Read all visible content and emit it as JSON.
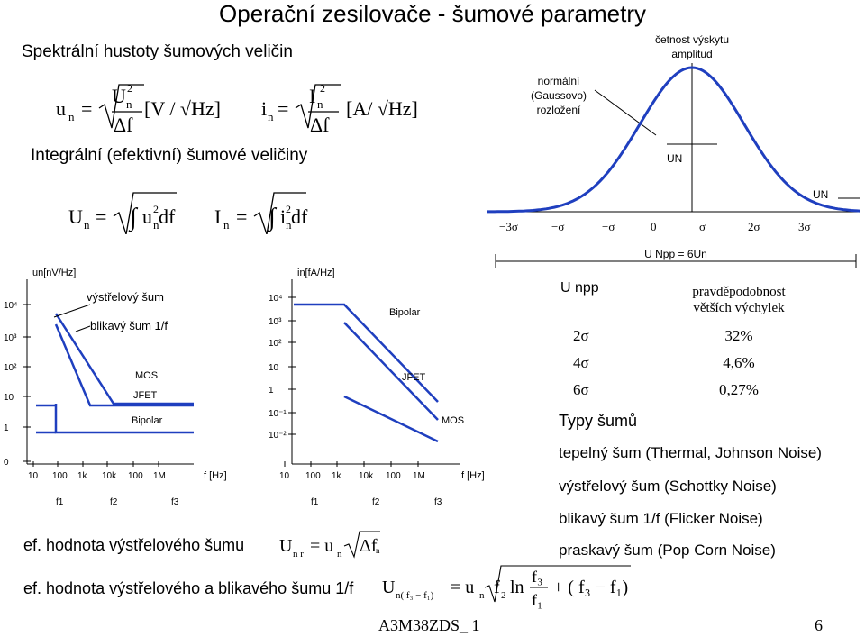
{
  "title": "Operační zesilovače - šumové parametry",
  "section_spectral": "Spektrální hustoty šumových veličin",
  "section_integral": "Integrální (efektivní) šumové veličiny",
  "formula_un_unit": "[V / √Hz]",
  "formula_in_unit": "[A/ √Hz]",
  "gauss": {
    "label_top": [
      "četnost výskytu",
      "amplitud"
    ],
    "label_normal": [
      "normální",
      "(Gaussovo)",
      "rozložení"
    ],
    "un_label": "UN",
    "un_right": "UN",
    "axis_ticks": [
      "−3σ",
      "−σ",
      "−σ",
      "0",
      "σ",
      "2σ",
      "3σ"
    ],
    "unpp_caption": "U Npp = 6Un"
  },
  "chart1": {
    "ylabel": "un[nV/Hz]",
    "yticks": [
      "10⁴",
      "10³",
      "10²",
      "10",
      "1",
      "0"
    ],
    "xticks": [
      "10",
      "100",
      "1k",
      "10k",
      "100",
      "1M"
    ],
    "xunit": "f [Hz]",
    "fmarks": [
      "f1",
      "f2",
      "f3"
    ],
    "labels": [
      "výstřelový šum",
      "blikavý šum 1/f",
      "MOS",
      "JFET",
      "Bipolar"
    ]
  },
  "chart2": {
    "ylabel": "in[fA/Hz]",
    "yticks": [
      "10⁴",
      "10³",
      "10²",
      "10",
      "1",
      "10⁻¹",
      "10⁻²"
    ],
    "xticks": [
      "10",
      "100",
      "1k",
      "10k",
      "100",
      "1M"
    ],
    "xunit": "f [Hz]",
    "fmarks": [
      "f1",
      "f2",
      "f3"
    ],
    "labels": [
      "Bipolar",
      "JFET",
      "MOS"
    ]
  },
  "table": {
    "header_left": "U npp",
    "header_right": [
      "pravděpodobnost",
      "větších výchylek"
    ],
    "rows": [
      {
        "k": "2σ",
        "v": "32%"
      },
      {
        "k": "4σ",
        "v": "4,6%"
      },
      {
        "k": "6σ",
        "v": "0,27%"
      }
    ]
  },
  "noise_types": {
    "heading": "Typy šumů",
    "items": [
      "tepelný šum (Thermal, Johnson Noise)",
      "výstřelový šum (Schottky Noise)",
      "blikavý šum 1/f (Flicker Noise)",
      "praskavý šum (Pop Corn Noise)"
    ]
  },
  "bottom": {
    "shot_label": "ef. hodnota výstřelového šumu",
    "flicker_label": "ef. hodnota výstřelového a blikavého šumu 1/f",
    "footer_code": "A3M38ZDS_ 1",
    "page_number": "6"
  },
  "colors": {
    "curve": "#1f3fbf",
    "line": "#000000"
  }
}
